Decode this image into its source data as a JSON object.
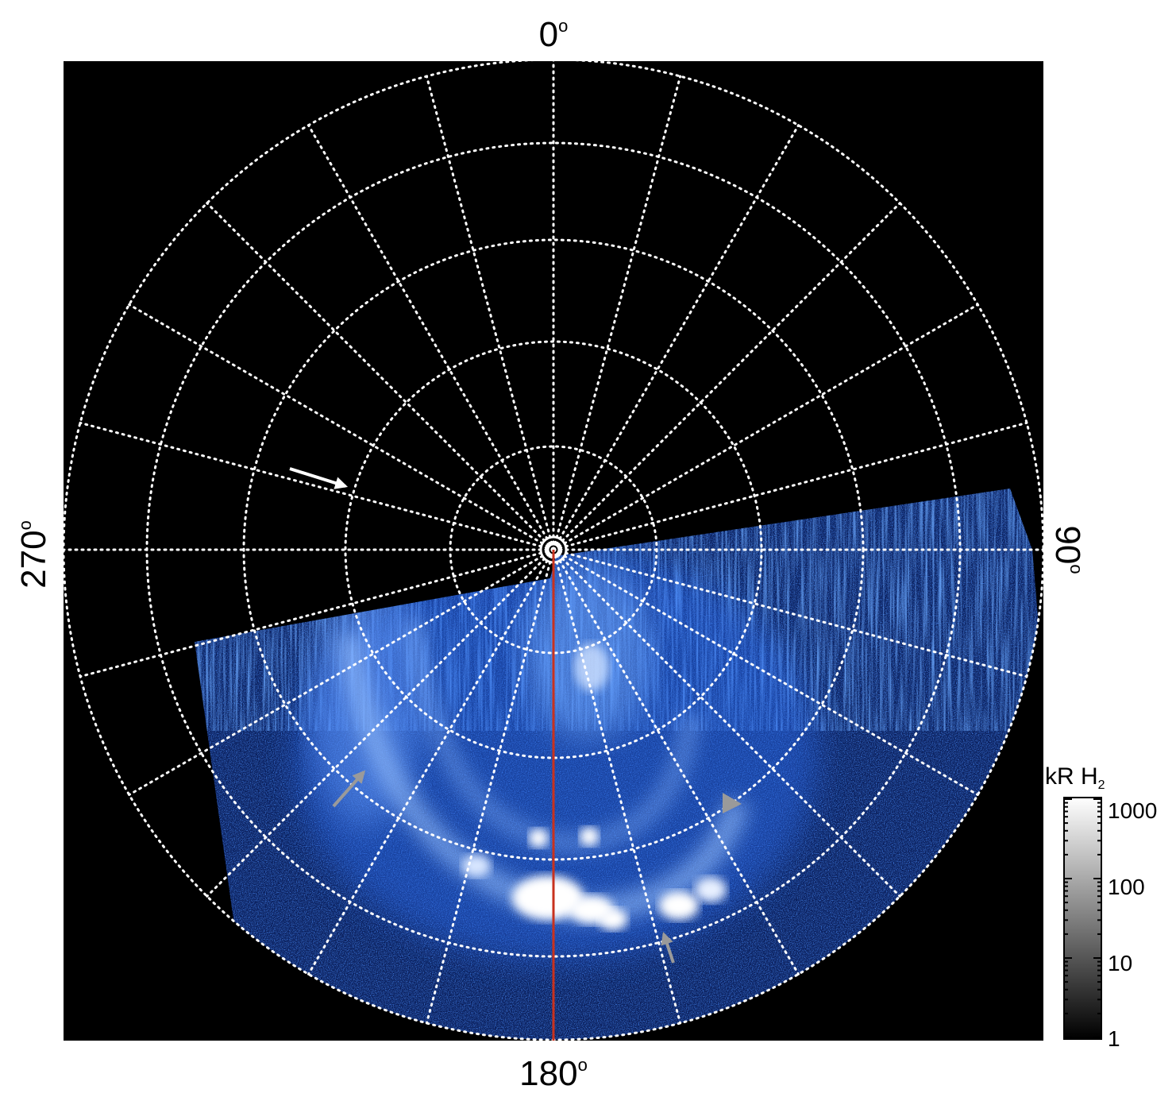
{
  "figure": {
    "angle_labels": {
      "top": "0",
      "bottom": "180",
      "left": "270",
      "right": "90",
      "degree_symbol": "o"
    },
    "colorbar": {
      "title_main": "kR H",
      "title_sub": "2",
      "ticks": [
        "1000",
        "100",
        "10",
        "1"
      ]
    },
    "colors": {
      "background": "#000000",
      "grid": "#ffffff",
      "meridian_line": "#c8321e",
      "aurora_blue": "#1e5adc",
      "aurora_bright": "#ffffff",
      "arrow_white": "#ffffff",
      "arrow_gray": "#9a9a9a"
    },
    "annotations": [
      "white-arrow",
      "gray-arrow-left",
      "gray-arrow-right",
      "gray-arrow-bottom"
    ]
  }
}
